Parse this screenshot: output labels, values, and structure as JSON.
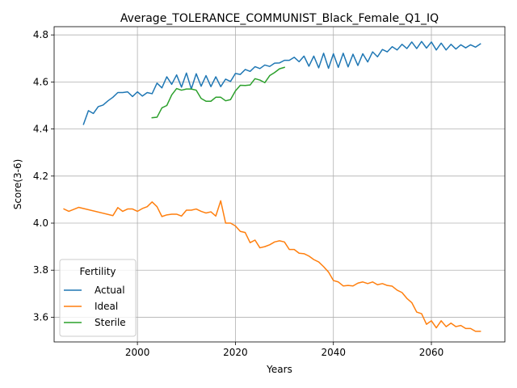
{
  "chart_data": {
    "type": "line",
    "title": "Average_TOLERANCE_COMMUNIST_Black_Female_Q1_IQ",
    "xlabel": "Years",
    "ylabel": "Score(3-6)",
    "xlim": [
      1983,
      2075
    ],
    "ylim": [
      3.495,
      4.835
    ],
    "xticks": [
      2000,
      2020,
      2040,
      2060
    ],
    "yticks": [
      3.6,
      3.8,
      4.0,
      4.2,
      4.4,
      4.6,
      4.8
    ],
    "grid": true,
    "legend": {
      "title": "Fertility",
      "placement": "lower-left"
    },
    "series": [
      {
        "name": "Actual",
        "color": "#1f77b4",
        "points": [
          [
            1989,
            4.42
          ],
          [
            1990,
            4.478
          ],
          [
            1991,
            4.466
          ],
          [
            1992,
            4.495
          ],
          [
            1993,
            4.502
          ],
          [
            1994,
            4.52
          ],
          [
            1995,
            4.535
          ],
          [
            1996,
            4.555
          ],
          [
            1997,
            4.555
          ],
          [
            1998,
            4.558
          ],
          [
            1999,
            4.538
          ],
          [
            2000,
            4.558
          ],
          [
            2001,
            4.54
          ],
          [
            2002,
            4.555
          ],
          [
            2003,
            4.55
          ],
          [
            2004,
            4.595
          ],
          [
            2005,
            4.575
          ],
          [
            2006,
            4.622
          ],
          [
            2007,
            4.59
          ],
          [
            2008,
            4.63
          ],
          [
            2009,
            4.578
          ],
          [
            2010,
            4.638
          ],
          [
            2011,
            4.57
          ],
          [
            2012,
            4.635
          ],
          [
            2013,
            4.582
          ],
          [
            2014,
            4.627
          ],
          [
            2015,
            4.58
          ],
          [
            2016,
            4.622
          ],
          [
            2017,
            4.58
          ],
          [
            2018,
            4.612
          ],
          [
            2019,
            4.602
          ],
          [
            2020,
            4.636
          ],
          [
            2021,
            4.632
          ],
          [
            2022,
            4.653
          ],
          [
            2023,
            4.645
          ],
          [
            2024,
            4.665
          ],
          [
            2025,
            4.657
          ],
          [
            2026,
            4.672
          ],
          [
            2027,
            4.666
          ],
          [
            2028,
            4.68
          ],
          [
            2029,
            4.681
          ],
          [
            2030,
            4.692
          ],
          [
            2031,
            4.692
          ],
          [
            2032,
            4.705
          ],
          [
            2033,
            4.686
          ],
          [
            2034,
            4.71
          ],
          [
            2035,
            4.667
          ],
          [
            2036,
            4.71
          ],
          [
            2037,
            4.66
          ],
          [
            2038,
            4.722
          ],
          [
            2039,
            4.658
          ],
          [
            2040,
            4.72
          ],
          [
            2041,
            4.662
          ],
          [
            2042,
            4.722
          ],
          [
            2043,
            4.664
          ],
          [
            2044,
            4.718
          ],
          [
            2045,
            4.67
          ],
          [
            2046,
            4.72
          ],
          [
            2047,
            4.685
          ],
          [
            2048,
            4.728
          ],
          [
            2049,
            4.707
          ],
          [
            2050,
            4.738
          ],
          [
            2051,
            4.728
          ],
          [
            2052,
            4.75
          ],
          [
            2053,
            4.736
          ],
          [
            2054,
            4.76
          ],
          [
            2055,
            4.742
          ],
          [
            2056,
            4.77
          ],
          [
            2057,
            4.742
          ],
          [
            2058,
            4.772
          ],
          [
            2059,
            4.744
          ],
          [
            2060,
            4.77
          ],
          [
            2061,
            4.736
          ],
          [
            2062,
            4.765
          ],
          [
            2063,
            4.736
          ],
          [
            2064,
            4.76
          ],
          [
            2065,
            4.74
          ],
          [
            2066,
            4.758
          ],
          [
            2067,
            4.745
          ],
          [
            2068,
            4.758
          ],
          [
            2069,
            4.748
          ],
          [
            2070,
            4.762
          ]
        ]
      },
      {
        "name": "Ideal",
        "color": "#ff7f0e",
        "points": [
          [
            1985,
            4.06
          ],
          [
            1986,
            4.05
          ],
          [
            1988,
            4.067
          ],
          [
            1995,
            4.032
          ],
          [
            1996,
            4.066
          ],
          [
            1997,
            4.05
          ],
          [
            1998,
            4.06
          ],
          [
            1999,
            4.06
          ],
          [
            2000,
            4.05
          ],
          [
            2001,
            4.062
          ],
          [
            2002,
            4.07
          ],
          [
            2003,
            4.09
          ],
          [
            2004,
            4.07
          ],
          [
            2005,
            4.028
          ],
          [
            2006,
            4.035
          ],
          [
            2007,
            4.038
          ],
          [
            2008,
            4.038
          ],
          [
            2009,
            4.03
          ],
          [
            2010,
            4.055
          ],
          [
            2011,
            4.055
          ],
          [
            2012,
            4.06
          ],
          [
            2013,
            4.05
          ],
          [
            2014,
            4.043
          ],
          [
            2015,
            4.048
          ],
          [
            2016,
            4.03
          ],
          [
            2017,
            4.095
          ],
          [
            2018,
            4.0
          ],
          [
            2019,
            4.0
          ],
          [
            2020,
            3.988
          ],
          [
            2021,
            3.965
          ],
          [
            2022,
            3.96
          ],
          [
            2023,
            3.917
          ],
          [
            2024,
            3.928
          ],
          [
            2025,
            3.895
          ],
          [
            2026,
            3.9
          ],
          [
            2027,
            3.908
          ],
          [
            2028,
            3.92
          ],
          [
            2029,
            3.925
          ],
          [
            2030,
            3.92
          ],
          [
            2031,
            3.888
          ],
          [
            2032,
            3.888
          ],
          [
            2033,
            3.872
          ],
          [
            2034,
            3.87
          ],
          [
            2035,
            3.86
          ],
          [
            2036,
            3.845
          ],
          [
            2037,
            3.835
          ],
          [
            2038,
            3.815
          ],
          [
            2039,
            3.792
          ],
          [
            2040,
            3.756
          ],
          [
            2041,
            3.75
          ],
          [
            2042,
            3.733
          ],
          [
            2043,
            3.735
          ],
          [
            2044,
            3.733
          ],
          [
            2045,
            3.745
          ],
          [
            2046,
            3.75
          ],
          [
            2047,
            3.743
          ],
          [
            2048,
            3.75
          ],
          [
            2049,
            3.738
          ],
          [
            2050,
            3.743
          ],
          [
            2051,
            3.735
          ],
          [
            2052,
            3.732
          ],
          [
            2053,
            3.715
          ],
          [
            2054,
            3.705
          ],
          [
            2055,
            3.68
          ],
          [
            2056,
            3.662
          ],
          [
            2057,
            3.622
          ],
          [
            2058,
            3.615
          ],
          [
            2059,
            3.57
          ],
          [
            2060,
            3.585
          ],
          [
            2061,
            3.555
          ],
          [
            2062,
            3.585
          ],
          [
            2063,
            3.56
          ],
          [
            2064,
            3.575
          ],
          [
            2065,
            3.56
          ],
          [
            2066,
            3.565
          ],
          [
            2067,
            3.552
          ],
          [
            2068,
            3.552
          ],
          [
            2069,
            3.54
          ],
          [
            2070,
            3.54
          ]
        ]
      },
      {
        "name": "Sterile",
        "color": "#2ca02c",
        "points": [
          [
            2003,
            4.448
          ],
          [
            2004,
            4.45
          ],
          [
            2005,
            4.49
          ],
          [
            2006,
            4.5
          ],
          [
            2007,
            4.545
          ],
          [
            2008,
            4.572
          ],
          [
            2009,
            4.565
          ],
          [
            2010,
            4.57
          ],
          [
            2011,
            4.57
          ],
          [
            2012,
            4.565
          ],
          [
            2013,
            4.53
          ],
          [
            2014,
            4.518
          ],
          [
            2015,
            4.518
          ],
          [
            2016,
            4.535
          ],
          [
            2017,
            4.535
          ],
          [
            2018,
            4.52
          ],
          [
            2019,
            4.525
          ],
          [
            2020,
            4.562
          ],
          [
            2021,
            4.586
          ],
          [
            2022,
            4.585
          ],
          [
            2023,
            4.587
          ],
          [
            2024,
            4.614
          ],
          [
            2025,
            4.608
          ],
          [
            2026,
            4.597
          ],
          [
            2027,
            4.627
          ],
          [
            2028,
            4.64
          ],
          [
            2029,
            4.656
          ],
          [
            2030,
            4.662
          ]
        ]
      }
    ]
  }
}
